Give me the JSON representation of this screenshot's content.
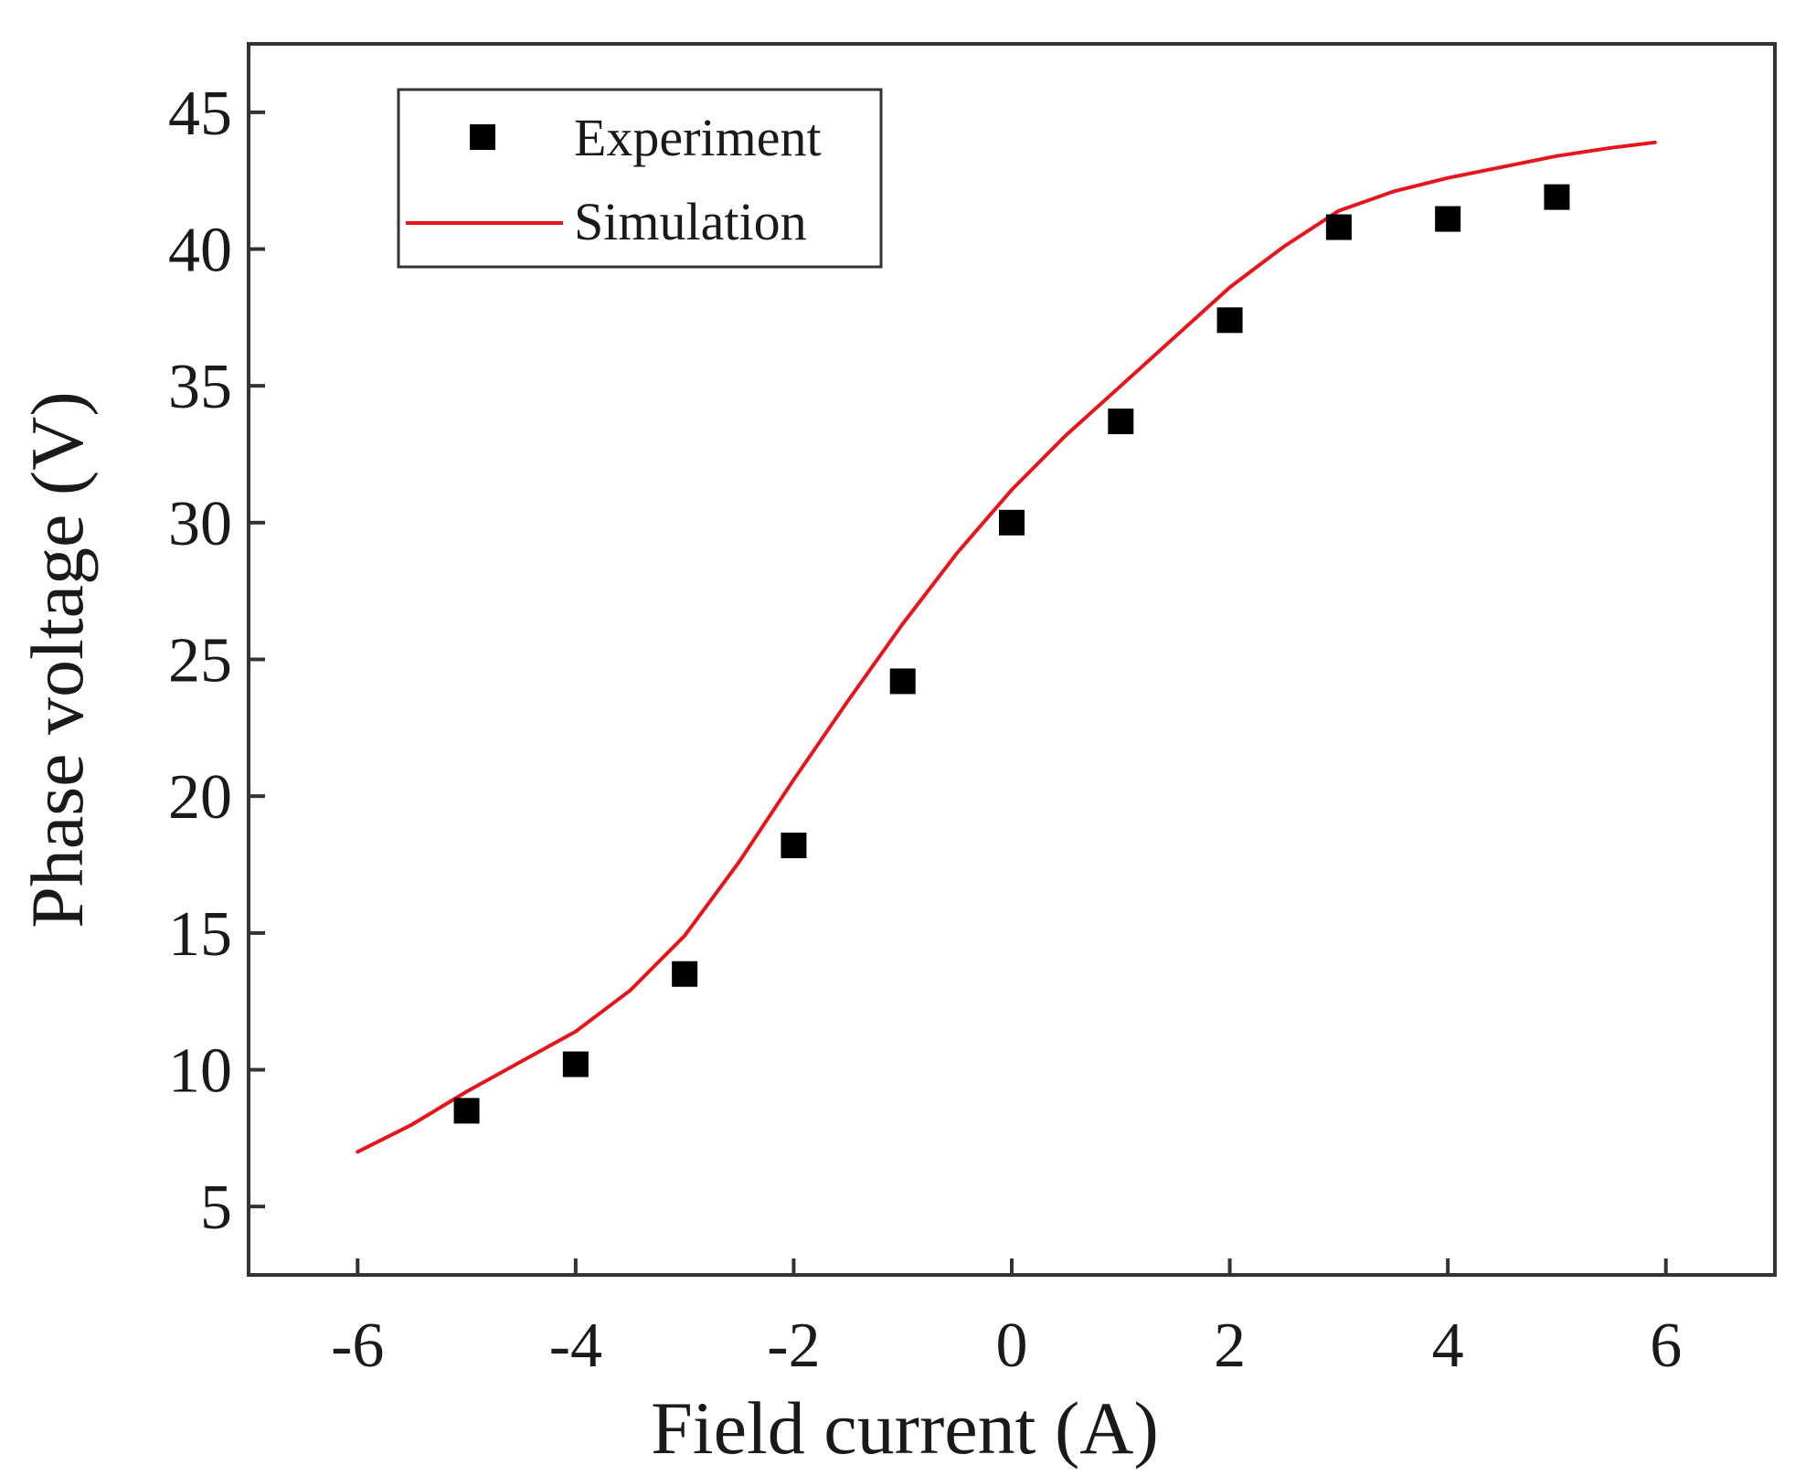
{
  "chart_data": {
    "type": "scatter",
    "title": "",
    "xlabel": "Field current (A)",
    "ylabel": "Phase voltage (V)",
    "xlim": [
      -7,
      7
    ],
    "ylim": [
      2.5,
      47.5
    ],
    "xticks": [
      -6,
      -4,
      -2,
      0,
      2,
      4,
      6
    ],
    "xtick_labels": [
      "-6",
      "-4",
      "-2",
      "0",
      "2",
      "4",
      "6"
    ],
    "yticks": [
      5,
      10,
      15,
      20,
      25,
      30,
      35,
      40,
      45
    ],
    "ytick_labels": [
      "5",
      "10",
      "15",
      "20",
      "25",
      "30",
      "35",
      "40",
      "45"
    ],
    "grid": false,
    "legend_position": "top-left",
    "series": [
      {
        "name": "Experiment",
        "kind": "scatter",
        "marker": "square",
        "color": "#000000",
        "x": [
          -5,
          -4,
          -3,
          -2,
          -1,
          0,
          1,
          2,
          3,
          4,
          5
        ],
        "y": [
          8.5,
          10.2,
          13.5,
          18.2,
          24.2,
          30.0,
          33.7,
          37.4,
          40.8,
          41.1,
          41.9
        ]
      },
      {
        "name": "Simulation",
        "kind": "line",
        "color": "#e8141b",
        "x": [
          -6,
          -5.5,
          -5,
          -4.5,
          -4,
          -3.5,
          -3,
          -2.5,
          -2,
          -1.5,
          -1,
          -0.5,
          0,
          0.5,
          1,
          1.5,
          2,
          2.5,
          3,
          3.5,
          4,
          4.5,
          5,
          5.5,
          5.9
        ],
        "y": [
          7.0,
          8.0,
          9.2,
          10.3,
          11.4,
          12.9,
          14.9,
          17.6,
          20.6,
          23.5,
          26.3,
          28.9,
          31.2,
          33.2,
          35.0,
          36.8,
          38.6,
          40.1,
          41.4,
          42.1,
          42.6,
          43.0,
          43.4,
          43.7,
          43.9
        ]
      }
    ]
  }
}
